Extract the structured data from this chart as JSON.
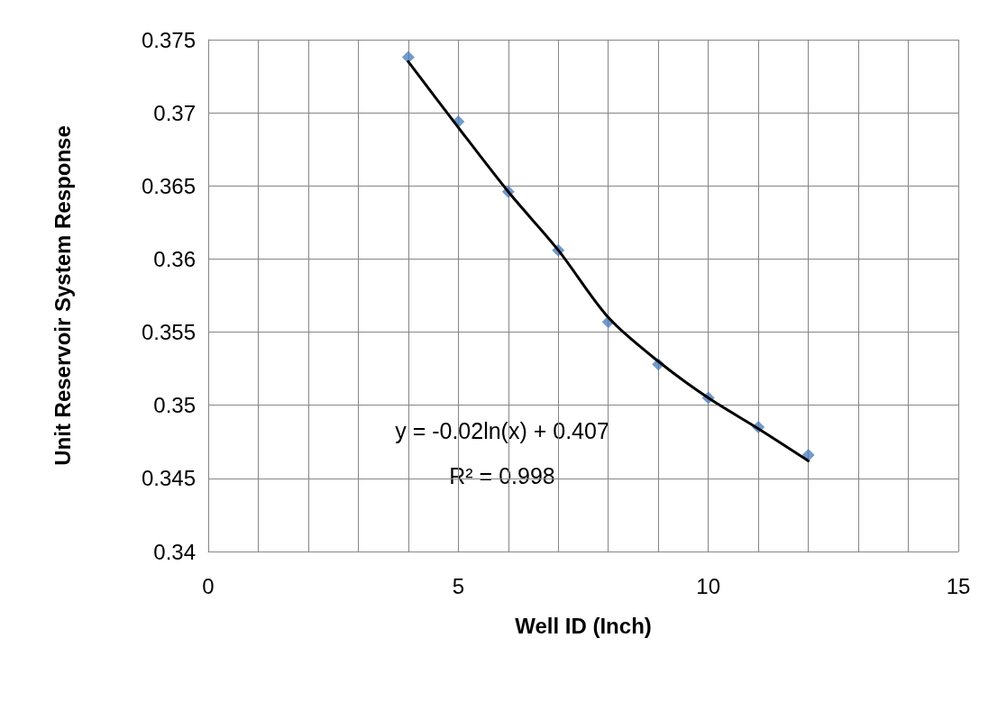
{
  "chart_data": {
    "type": "scatter",
    "xlabel": "Well ID (Inch)",
    "ylabel": "Unit Reservoir System Response",
    "xlim": [
      0,
      15
    ],
    "ylim": [
      0.34,
      0.375
    ],
    "xticks": [
      0,
      {
        "value": 1,
        "label": null
      },
      {
        "value": 2,
        "label": null
      },
      {
        "value": 3,
        "label": null
      },
      {
        "value": 4,
        "label": null
      },
      5,
      {
        "value": 6,
        "label": null
      },
      {
        "value": 7,
        "label": null
      },
      {
        "value": 8,
        "label": null
      },
      {
        "value": 9,
        "label": null
      },
      10,
      {
        "value": 11,
        "label": null
      },
      {
        "value": 12,
        "label": null
      },
      {
        "value": 13,
        "label": null
      },
      {
        "value": 14,
        "label": null
      },
      15
    ],
    "yticks": [
      0.34,
      0.345,
      0.35,
      0.355,
      0.36,
      0.365,
      0.37,
      0.375
    ],
    "grid": true,
    "series": [
      {
        "marker": "diamond",
        "color": "#4f81bd",
        "x": [
          4,
          5,
          6,
          7,
          8,
          9,
          10,
          11,
          12
        ],
        "values": [
          0.3738,
          0.3694,
          0.3646,
          0.3606,
          0.3557,
          0.3528,
          0.3505,
          0.3485,
          0.3466
        ]
      },
      {
        "type": "line",
        "marker": "none",
        "line_style": "solid",
        "color": "#000000",
        "x": [
          4,
          5,
          6,
          7,
          8,
          9,
          10,
          11,
          12
        ],
        "values": [
          0.3735,
          0.369,
          0.3646,
          0.3606,
          0.356,
          0.353,
          0.3505,
          0.3484,
          0.3462
        ]
      }
    ],
    "annotations": [
      "y = -0.02ln(x) + 0.407",
      "R² = 0.998"
    ]
  }
}
